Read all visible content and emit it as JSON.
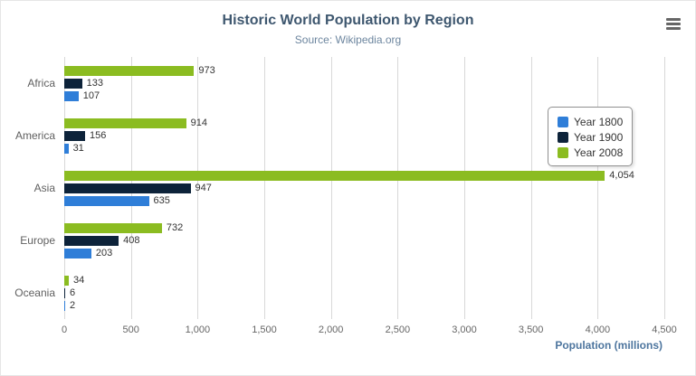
{
  "header": {
    "title": "Historic World Population by Region",
    "subtitle": "Source: Wikipedia.org"
  },
  "export_menu": {
    "icon": "hamburger-icon"
  },
  "chart_data": {
    "type": "bar",
    "orientation": "horizontal",
    "title": "Historic World Population by Region",
    "subtitle": "Source: Wikipedia.org",
    "categories": [
      "Africa",
      "America",
      "Asia",
      "Europe",
      "Oceania"
    ],
    "series": [
      {
        "name": "Year 1800",
        "color": "#2f7ed8",
        "values": [
          107,
          31,
          635,
          203,
          2
        ]
      },
      {
        "name": "Year 1900",
        "color": "#0d233a",
        "values": [
          133,
          156,
          947,
          408,
          6
        ]
      },
      {
        "name": "Year 2008",
        "color": "#8bbc21",
        "values": [
          973,
          914,
          4054,
          732,
          34
        ]
      }
    ],
    "bar_order_top_to_bottom": [
      "Year 2008",
      "Year 1900",
      "Year 1800"
    ],
    "xlabel": "Population (millions)",
    "ylabel": "",
    "xlim": [
      0,
      4500
    ],
    "xticks": [
      0,
      500,
      1000,
      1500,
      2000,
      2500,
      3000,
      3500,
      4000,
      4500
    ],
    "grid": true,
    "legend_position": "right",
    "data_labels": true
  }
}
